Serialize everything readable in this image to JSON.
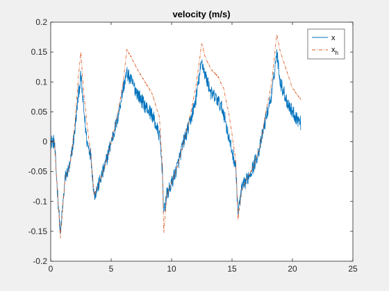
{
  "chart_data": {
    "type": "line",
    "title": "velocity (m/s)",
    "xlabel": "",
    "ylabel": "",
    "xlim": [
      0,
      25
    ],
    "ylim": [
      -0.2,
      0.2
    ],
    "x_ticks": [
      0,
      5,
      10,
      15,
      20,
      25
    ],
    "x_tick_labels": [
      "0",
      "5",
      "10",
      "15",
      "20",
      "25"
    ],
    "y_ticks": [
      -0.2,
      -0.15,
      -0.1,
      -0.05,
      0,
      0.05,
      0.1,
      0.15,
      0.2
    ],
    "y_tick_labels": [
      "-0.2",
      "-0.15",
      "-0.1",
      "-0.05",
      "0",
      "0.05",
      "0.1",
      "0.15",
      "0.2"
    ],
    "grid": false,
    "legend_position": "top-right",
    "legend": {
      "entries": [
        {
          "label": "x",
          "subscript": ""
        },
        {
          "label": "x",
          "subscript": "h"
        }
      ]
    },
    "series": [
      {
        "label": "x",
        "color": "#0072bd",
        "dash": "solid",
        "noise": 0.012,
        "x": [
          0,
          0.3,
          0.55,
          0.8,
          1.2,
          1.6,
          2.0,
          2.3,
          2.5,
          2.7,
          3.0,
          3.3,
          3.6,
          4.0,
          4.5,
          5.0,
          5.5,
          6.0,
          6.3,
          6.7,
          7.2,
          7.8,
          8.4,
          9.0,
          9.25,
          9.35,
          9.6,
          10.0,
          10.5,
          11.0,
          11.5,
          12.0,
          12.5,
          12.8,
          13.3,
          13.8,
          14.3,
          14.8,
          15.3,
          15.5,
          15.8,
          16.3,
          16.8,
          17.3,
          17.8,
          18.3,
          18.7,
          19.0,
          19.5,
          20.0,
          20.7
        ],
        "y": [
          0,
          0.0,
          -0.08,
          -0.155,
          -0.06,
          -0.04,
          0.02,
          0.08,
          0.11,
          0.06,
          0.0,
          -0.02,
          -0.09,
          -0.07,
          -0.04,
          0.0,
          0.035,
          0.09,
          0.115,
          0.1,
          0.08,
          0.06,
          0.045,
          0.01,
          -0.05,
          -0.12,
          -0.09,
          -0.07,
          -0.04,
          0.0,
          0.03,
          0.07,
          0.135,
          0.11,
          0.08,
          0.07,
          0.05,
          0.0,
          -0.04,
          -0.12,
          -0.08,
          -0.06,
          -0.04,
          -0.01,
          0.04,
          0.08,
          0.15,
          0.1,
          0.07,
          0.05,
          0.03
        ]
      },
      {
        "label": "x_h",
        "color": "#d95319",
        "dash": "dashdot",
        "noise": 0.0015,
        "x": [
          0,
          0.3,
          0.55,
          0.8,
          1.2,
          1.6,
          2.0,
          2.3,
          2.5,
          2.7,
          3.0,
          3.3,
          3.6,
          4.0,
          4.5,
          5.0,
          5.5,
          6.0,
          6.3,
          6.7,
          7.2,
          7.8,
          8.4,
          9.0,
          9.25,
          9.35,
          9.6,
          10.0,
          10.5,
          11.0,
          11.5,
          12.0,
          12.5,
          12.8,
          13.3,
          13.8,
          14.3,
          14.8,
          15.3,
          15.5,
          15.8,
          16.3,
          16.8,
          17.3,
          17.8,
          18.3,
          18.7,
          19.0,
          19.5,
          20.0,
          20.7
        ],
        "y": [
          0,
          0.0,
          -0.08,
          -0.16,
          -0.06,
          -0.04,
          0.03,
          0.11,
          0.15,
          0.09,
          0.03,
          -0.02,
          -0.09,
          -0.07,
          -0.04,
          0.0,
          0.04,
          0.1,
          0.155,
          0.14,
          0.12,
          0.1,
          0.08,
          0.04,
          -0.05,
          -0.155,
          -0.09,
          -0.07,
          -0.04,
          0.0,
          0.04,
          0.09,
          0.165,
          0.14,
          0.12,
          0.11,
          0.09,
          0.04,
          -0.03,
          -0.13,
          -0.08,
          -0.06,
          -0.04,
          -0.01,
          0.05,
          0.1,
          0.18,
          0.15,
          0.12,
          0.09,
          0.07
        ]
      }
    ]
  }
}
